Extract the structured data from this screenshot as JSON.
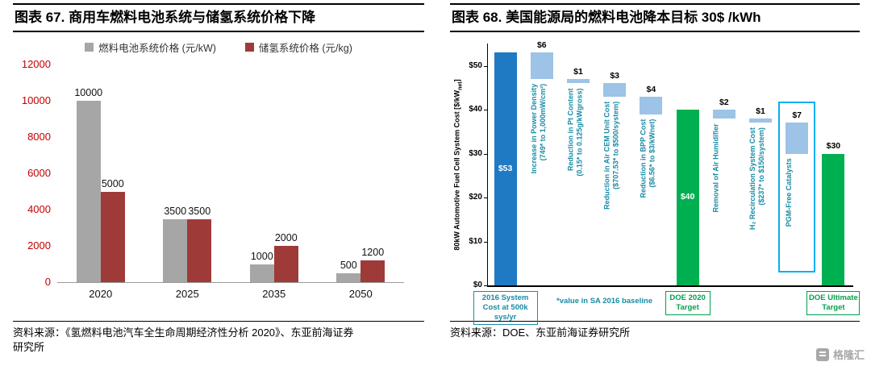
{
  "page": {
    "watermark_text": "格隆汇"
  },
  "left_panel": {
    "title": "图表 67. 商用车燃料电池系统与储氢系统价格下降",
    "source_line1": "资料来源：《氢燃料电池汽车全生命周期经济性分析 2020》、东亚前海证券",
    "source_line2": "研究所"
  },
  "right_panel": {
    "title": "图表 68. 美国能源局的燃料电池降本目标 30$ /kWh",
    "source": "资料来源：DOE、东亚前海证券研究所"
  },
  "chart_data": [
    {
      "type": "bar",
      "title": "商用车燃料电池系统与储氢系统价格下降",
      "categories": [
        "2020",
        "2025",
        "2035",
        "2050"
      ],
      "series": [
        {
          "name": "燃料电池系统价格 (元/kW)",
          "color": "#a6a6a6",
          "values": [
            10000,
            3500,
            1000,
            500
          ]
        },
        {
          "name": "储氢系统价格 (元/kg)",
          "color": "#9e3b39",
          "values": [
            5000,
            3500,
            2000,
            1200
          ]
        }
      ],
      "ylim": [
        0,
        12000
      ],
      "yticks": [
        0,
        2000,
        4000,
        6000,
        8000,
        10000,
        12000
      ],
      "axis_label_color": "#c00000",
      "grid": false,
      "legend_position": "top"
    },
    {
      "type": "waterfall",
      "title": "美国能源局的燃料电池降本目标 30$/kWh",
      "ylabel_main": "80kW Automotive Fuel Cell System Cost [$/kW",
      "ylabel_sub": "net",
      "ylabel_end": "]",
      "ylim": [
        0,
        55
      ],
      "yticks": [
        {
          "v": 0,
          "label": "$0"
        },
        {
          "v": 10,
          "label": "$10"
        },
        {
          "v": 20,
          "label": "$20"
        },
        {
          "v": 30,
          "label": "$30"
        },
        {
          "v": 40,
          "label": "$40"
        },
        {
          "v": 50,
          "label": "$50"
        }
      ],
      "step_label_color": "#178ca6",
      "highlight_color": "#00b0f0",
      "footnote": "*value in SA 2016 baseline",
      "columns": [
        {
          "kind": "total",
          "color": "#2079c3",
          "start": 0,
          "end": 53,
          "bar_label": "$53",
          "bar_label_pos": "inside",
          "axis_label": "2016 System Cost at 500k sys/yr",
          "axis_label_color": "#178ca6",
          "axis_label_boxed": true,
          "axis_label_width": 80
        },
        {
          "kind": "delta",
          "color": "#9dc3e6",
          "start": 47,
          "end": 53,
          "value_label": "$6",
          "side_label": "Increase in Power Density\n(749* to 1,000mW/cm²)"
        },
        {
          "kind": "delta",
          "color": "#9dc3e6",
          "start": 46,
          "end": 47,
          "value_label": "$1",
          "side_label": "Reduction in Pt Content\n(0.15* to 0.125g/kWgross)"
        },
        {
          "kind": "delta",
          "color": "#9dc3e6",
          "start": 43,
          "end": 46,
          "value_label": "$3",
          "side_label": "Reduction in Air CEM Unit Cost\n($707.53* to $500/system)"
        },
        {
          "kind": "delta",
          "color": "#9dc3e6",
          "start": 39,
          "end": 43,
          "value_label": "$4",
          "side_label": "Reduction in BPP Cost\n($6.56* to $3/kWnet)"
        },
        {
          "kind": "total",
          "color": "#00b050",
          "start": 0,
          "end": 40,
          "bar_label": "$40",
          "bar_label_pos": "inside",
          "axis_label": "DOE 2020 Target",
          "axis_label_color": "#00a14b",
          "axis_label_boxed": true,
          "axis_label_width": 56
        },
        {
          "kind": "delta",
          "color": "#9dc3e6",
          "start": 38,
          "end": 40,
          "value_label": "$2",
          "side_label": "Removal of Air Humidifier"
        },
        {
          "kind": "delta",
          "color": "#9dc3e6",
          "start": 37,
          "end": 38,
          "value_label": "$1",
          "side_label": "H₂ Recirculation System Cost\n($237* to $150/system)"
        },
        {
          "kind": "delta",
          "color": "#9dc3e6",
          "start": 30,
          "end": 37,
          "value_label": "$7",
          "side_label": "PGM-Free Catalysts",
          "highlight_box": true
        },
        {
          "kind": "total",
          "color": "#00b050",
          "start": 0,
          "end": 30,
          "bar_label": "$30",
          "bar_label_pos": "above",
          "axis_label": "DOE Ultimate Target",
          "axis_label_color": "#00a14b",
          "axis_label_boxed": true,
          "axis_label_width": 66
        }
      ]
    }
  ]
}
